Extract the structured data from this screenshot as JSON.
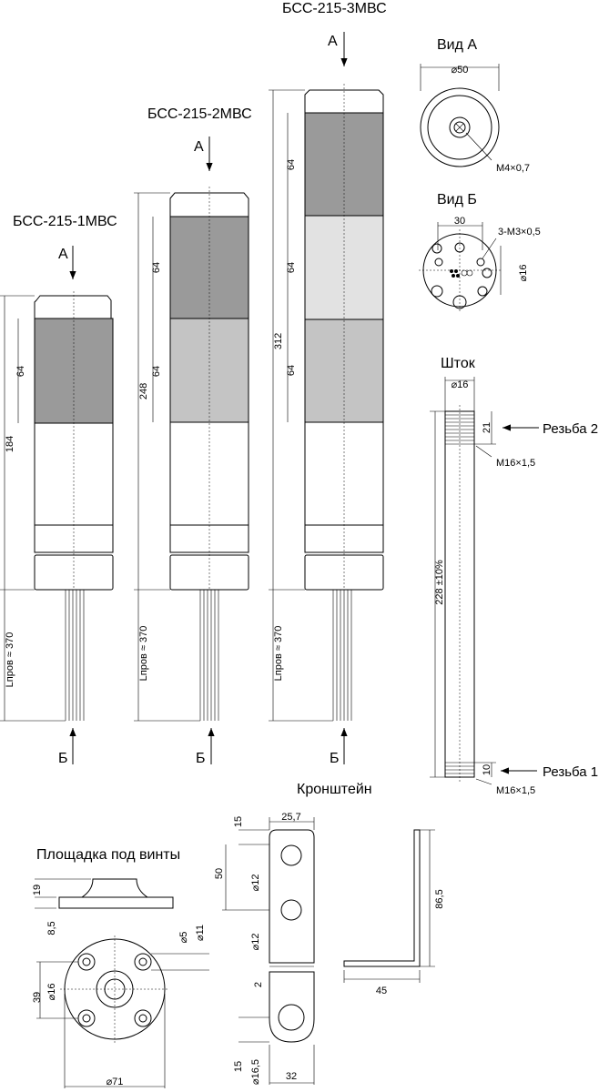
{
  "towers": [
    {
      "title": "БСС-215-1МВС",
      "arrow_top": "А",
      "arrow_bottom": "Б",
      "dim_total": "184",
      "dim_cell": "64",
      "dim_wire": "Lпров ≈ 370",
      "colors": [
        "#9a9a9a"
      ]
    },
    {
      "title": "БСС-215-2МВС",
      "arrow_top": "А",
      "arrow_bottom": "Б",
      "dim_total": "248",
      "dim_cell_1": "64",
      "dim_cell_2": "64",
      "dim_wire": "Lпров ≈ 370",
      "colors": [
        "#9a9a9a",
        "#c4c4c4"
      ]
    },
    {
      "title": "БСС-215-3МВС",
      "arrow_top": "А",
      "arrow_bottom": "Б",
      "dim_total": "312",
      "dim_cell_1": "64",
      "dim_cell_2": "64",
      "dim_cell_3": "64",
      "dim_wire": "Lпров ≈ 370",
      "colors": [
        "#9a9a9a",
        "#e2e2e2",
        "#c4c4c4"
      ]
    }
  ],
  "view_a": {
    "title": "Вид А",
    "diameter": "⌀50",
    "thread": "М4×0,7"
  },
  "view_b": {
    "title": "Вид Б",
    "spacing": "30",
    "holes": "3-М3×0,5",
    "diameter": "⌀16"
  },
  "rod": {
    "title": "Шток",
    "diameter": "⌀16",
    "thread_top_len": "21",
    "thread_top": "М16×1,5",
    "length": "228 ±10%",
    "thread_bottom_len": "10",
    "thread_bottom": "М16×1,5",
    "label_top": "Резьба 2",
    "label_bottom": "Резьба 1"
  },
  "bracket": {
    "title": "Кронштейн",
    "width": "25,7",
    "dim_top": "15",
    "dim_span": "50",
    "hole_1": "⌀12",
    "hole_2": "⌀12",
    "dim_gap": "2",
    "dim_bottom": "15",
    "hole_3": "⌀16,5",
    "foot_width": "32",
    "side_height": "86,5",
    "side_width": "45"
  },
  "pad": {
    "title": "Площадка под винты",
    "height": "19",
    "base": "8,5",
    "hole_small": "⌀5",
    "hole_big": "⌀11",
    "dim_39": "39",
    "center_hole": "⌀16",
    "diameter": "⌀71"
  }
}
